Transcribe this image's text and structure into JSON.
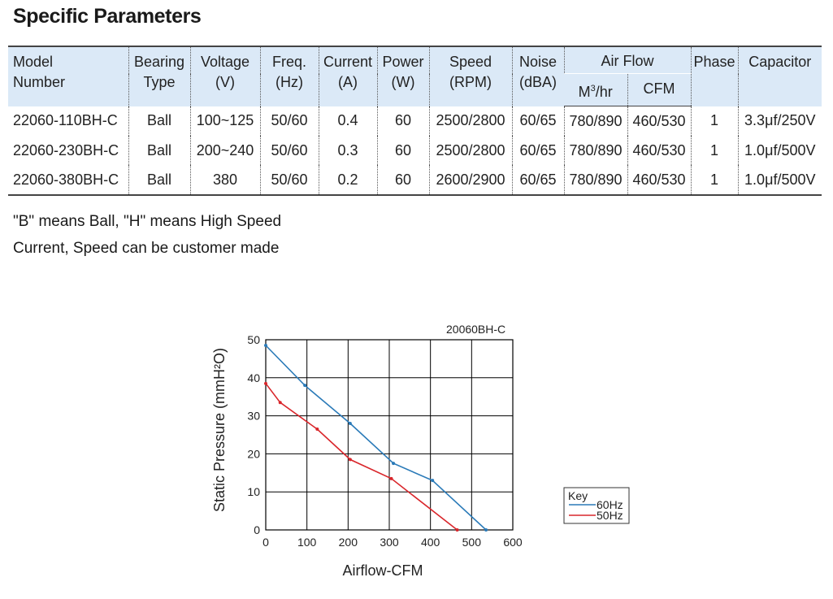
{
  "page": {
    "title": "Specific Parameters",
    "notes": [
      "\"B\" means Ball, \"H\" means High Speed",
      "Current, Speed can be customer made"
    ]
  },
  "table": {
    "headers": {
      "model_line1": "Model",
      "model_line2": "Number",
      "bearing_line1": "Bearing",
      "bearing_line2": "Type",
      "voltage_line1": "Voltage",
      "voltage_line2": "(V)",
      "freq_line1": "Freq.",
      "freq_line2": "(Hz)",
      "current_line1": "Current",
      "current_line2": "(A)",
      "power_line1": "Power",
      "power_line2": "(W)",
      "speed_line1": "Speed",
      "speed_line2": "(RPM)",
      "noise_line1": "Noise",
      "noise_line2": "(dBA)",
      "airflow": "Air Flow",
      "airflow_m3_base": "M",
      "airflow_m3_sup": "3",
      "airflow_m3_unit": "/hr",
      "airflow_cfm": "CFM",
      "phase": "Phase",
      "capacitor": "Capacitor"
    },
    "rows": [
      [
        "22060-110BH-C",
        "Ball",
        "100~125",
        "50/60",
        "0.4",
        "60",
        "2500/2800",
        "60/65",
        "780/890",
        "460/530",
        "1",
        "3.3μf/250V"
      ],
      [
        "22060-230BH-C",
        "Ball",
        "200~240",
        "50/60",
        "0.3",
        "60",
        "2500/2800",
        "60/65",
        "780/890",
        "460/530",
        "1",
        "1.0μf/500V"
      ],
      [
        "22060-380BH-C",
        "Ball",
        "380",
        "50/60",
        "0.2",
        "60",
        "2600/2900",
        "60/65",
        "780/890",
        "460/530",
        "1",
        "1.0μf/500V"
      ]
    ]
  },
  "chart_data": {
    "type": "line",
    "title": "20060BH-C",
    "xlabel": "Airflow-CFM",
    "ylabel": "Static Pressure (mmH²O)",
    "xlim": [
      0,
      600
    ],
    "ylim": [
      0,
      50
    ],
    "x_ticks": [
      0,
      100,
      200,
      300,
      400,
      500,
      600
    ],
    "y_ticks": [
      0,
      10,
      20,
      30,
      40,
      50
    ],
    "grid": true,
    "legend": {
      "title": "Key",
      "position": "bottom-right, outside plot"
    },
    "series": [
      {
        "name": "60Hz",
        "color": "#2a7ab8",
        "points": [
          [
            0,
            48.5
          ],
          [
            95,
            38
          ],
          [
            205,
            28
          ],
          [
            310,
            17.5
          ],
          [
            405,
            13
          ],
          [
            535,
            0
          ]
        ]
      },
      {
        "name": "50Hz",
        "color": "#d9262b",
        "points": [
          [
            0,
            38.5
          ],
          [
            35,
            33.5
          ],
          [
            125,
            26.5
          ],
          [
            205,
            18.5
          ],
          [
            305,
            13.5
          ],
          [
            465,
            0
          ]
        ]
      }
    ]
  }
}
